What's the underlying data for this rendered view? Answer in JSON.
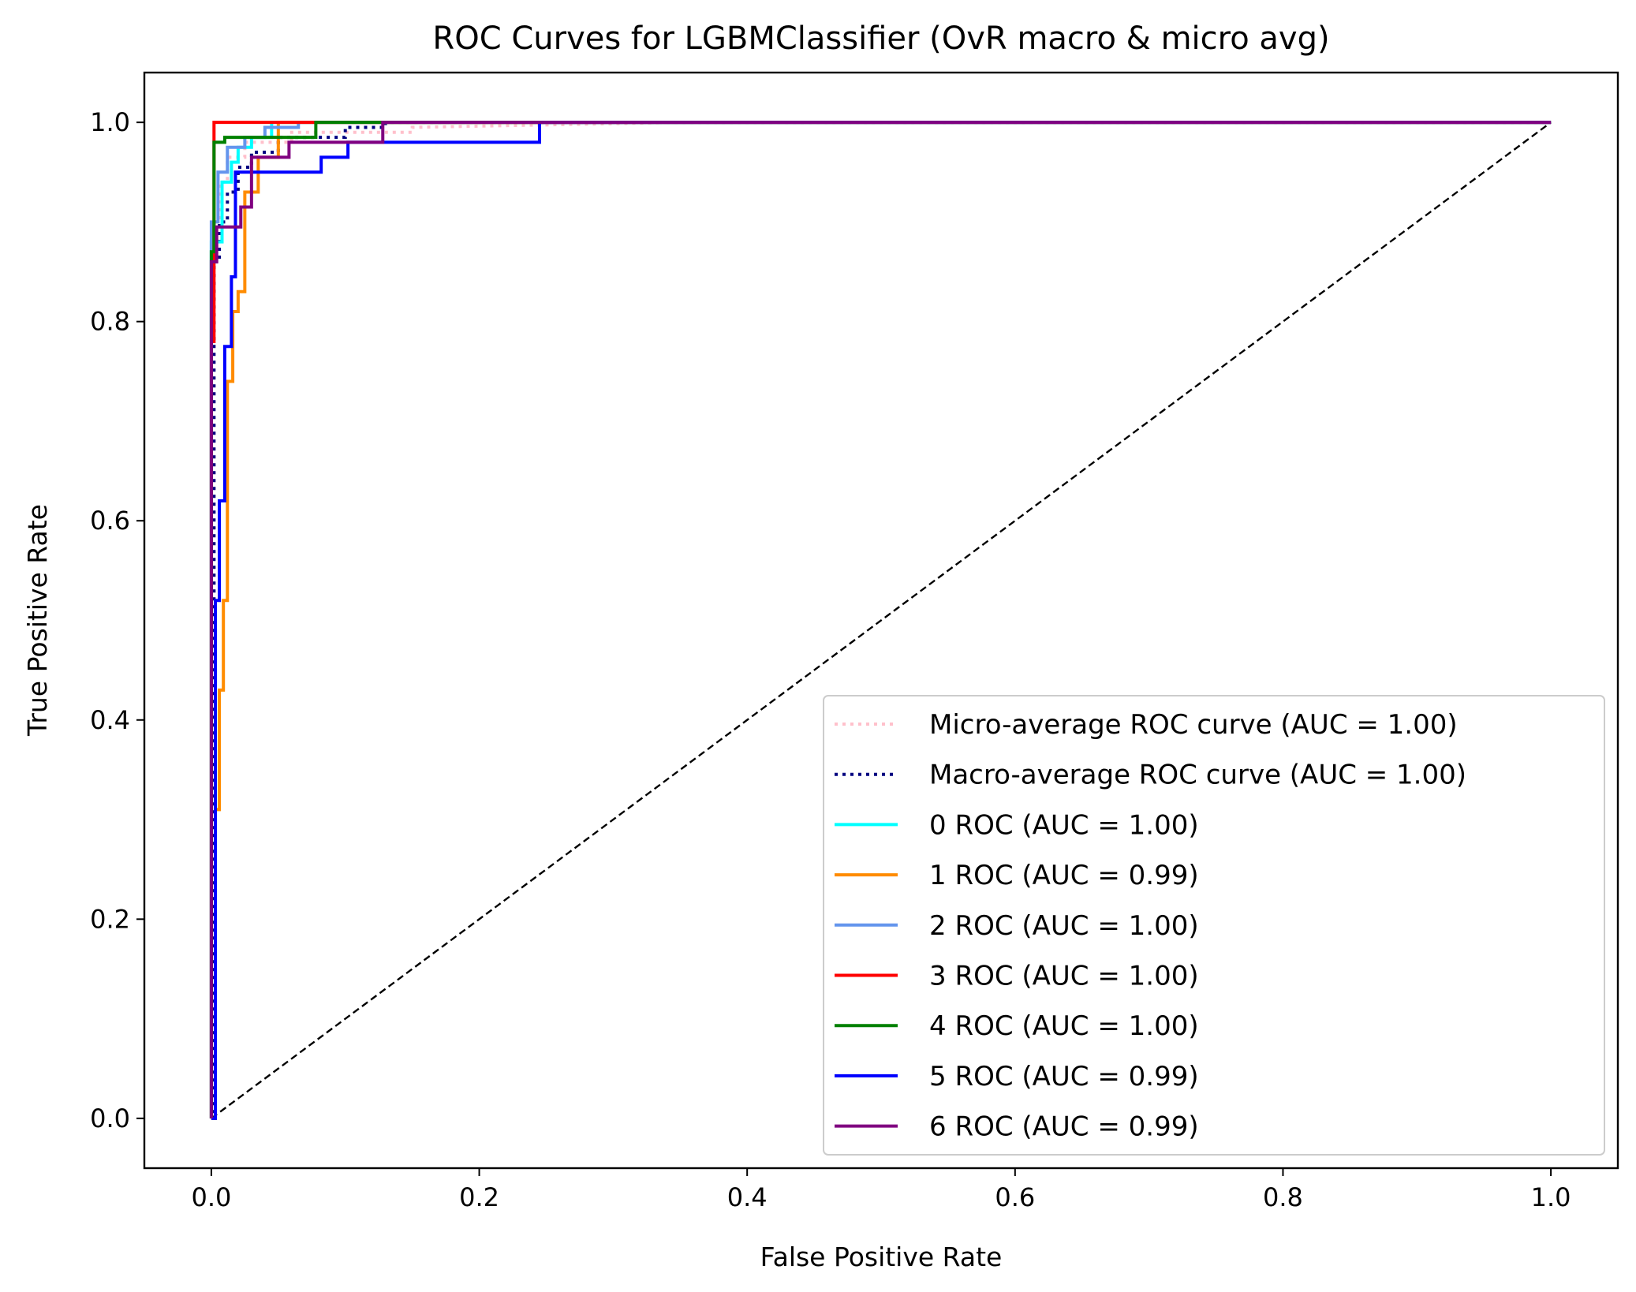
{
  "chart_data": {
    "type": "line",
    "title": "ROC Curves for LGBMClassifier (OvR macro & micro avg)",
    "xlabel": "False Positive Rate",
    "ylabel": "True Positive Rate",
    "xlim": [
      -0.05,
      1.05
    ],
    "ylim": [
      -0.05,
      1.05
    ],
    "xticks": [
      0.0,
      0.2,
      0.4,
      0.6,
      0.8,
      1.0
    ],
    "yticks": [
      0.0,
      0.2,
      0.4,
      0.6,
      0.8,
      1.0
    ],
    "xtick_labels": [
      "0.0",
      "0.2",
      "0.4",
      "0.6",
      "0.8",
      "1.0"
    ],
    "ytick_labels": [
      "0.0",
      "0.2",
      "0.4",
      "0.6",
      "0.8",
      "1.0"
    ],
    "grid": false,
    "legend_position": "lower right",
    "diagonal": {
      "x": [
        0,
        1
      ],
      "y": [
        0,
        1
      ],
      "color": "#000000",
      "style": "dashed"
    },
    "series": [
      {
        "name": "Micro-average ROC curve (AUC = 1.00)",
        "color": "#ffc0cb",
        "style": "dotted",
        "width": 4,
        "x": [
          0,
          0.002,
          0.002,
          0.006,
          0.006,
          0.012,
          0.012,
          0.025,
          0.025,
          0.06,
          0.06,
          0.15,
          0.15,
          0.35,
          1
        ],
        "y": [
          0,
          0,
          0.9,
          0.9,
          0.94,
          0.94,
          0.965,
          0.965,
          0.98,
          0.98,
          0.99,
          0.99,
          0.995,
          1.0,
          1.0
        ]
      },
      {
        "name": "Macro-average ROC curve (AUC = 1.00)",
        "color": "#000080",
        "style": "dotted",
        "width": 4,
        "x": [
          0,
          0.002,
          0.002,
          0.006,
          0.006,
          0.012,
          0.012,
          0.02,
          0.02,
          0.03,
          0.03,
          0.05,
          0.05,
          0.1,
          0.1,
          0.13,
          0.13,
          1
        ],
        "y": [
          0,
          0,
          0.86,
          0.86,
          0.9,
          0.9,
          0.93,
          0.93,
          0.955,
          0.955,
          0.97,
          0.97,
          0.985,
          0.985,
          0.995,
          0.995,
          1.0,
          1.0
        ]
      },
      {
        "name": "0 ROC (AUC = 1.00)",
        "color": "#00ffff",
        "style": "solid",
        "width": 4,
        "x": [
          0,
          0,
          0.008,
          0.008,
          0.015,
          0.015,
          0.02,
          0.02,
          0.03,
          0.03,
          0.045,
          0.045,
          1
        ],
        "y": [
          0,
          0.88,
          0.88,
          0.94,
          0.94,
          0.96,
          0.96,
          0.975,
          0.975,
          0.985,
          0.985,
          1.0,
          1.0
        ]
      },
      {
        "name": "1 ROC (AUC = 0.99)",
        "color": "#ff8c00",
        "style": "solid",
        "width": 4,
        "x": [
          0,
          0.003,
          0.003,
          0.006,
          0.006,
          0.009,
          0.009,
          0.012,
          0.012,
          0.016,
          0.016,
          0.02,
          0.02,
          0.025,
          0.025,
          0.035,
          0.035,
          0.05,
          0.05,
          1
        ],
        "y": [
          0,
          0,
          0.31,
          0.31,
          0.43,
          0.43,
          0.52,
          0.52,
          0.74,
          0.74,
          0.81,
          0.81,
          0.83,
          0.83,
          0.93,
          0.93,
          0.965,
          0.965,
          1.0,
          1.0
        ]
      },
      {
        "name": "2 ROC (AUC = 1.00)",
        "color": "#6495ed",
        "style": "solid",
        "width": 4,
        "x": [
          0,
          0,
          0.005,
          0.005,
          0.012,
          0.012,
          0.025,
          0.025,
          0.04,
          0.04,
          0.065,
          0.065,
          1
        ],
        "y": [
          0,
          0.9,
          0.9,
          0.95,
          0.95,
          0.975,
          0.975,
          0.985,
          0.985,
          0.995,
          0.995,
          1.0,
          1.0
        ]
      },
      {
        "name": "3 ROC (AUC = 1.00)",
        "color": "#ff0000",
        "style": "solid",
        "width": 4,
        "x": [
          0,
          0,
          0.002,
          0.002,
          1
        ],
        "y": [
          0,
          0.78,
          0.78,
          1.0,
          1.0
        ]
      },
      {
        "name": "4 ROC (AUC = 1.00)",
        "color": "#008000",
        "style": "solid",
        "width": 4,
        "x": [
          0,
          0,
          0.002,
          0.002,
          0.01,
          0.01,
          0.078,
          0.078,
          1
        ],
        "y": [
          0,
          0.87,
          0.87,
          0.98,
          0.98,
          0.985,
          0.985,
          1.0,
          1.0
        ]
      },
      {
        "name": "5 ROC (AUC = 0.99)",
        "color": "#0000ff",
        "style": "solid",
        "width": 4,
        "x": [
          0,
          0.003,
          0.003,
          0.006,
          0.006,
          0.01,
          0.01,
          0.015,
          0.015,
          0.018,
          0.018,
          0.082,
          0.082,
          0.102,
          0.102,
          0.245,
          0.245,
          1
        ],
        "y": [
          0,
          0,
          0.52,
          0.52,
          0.62,
          0.62,
          0.775,
          0.775,
          0.845,
          0.845,
          0.95,
          0.95,
          0.965,
          0.965,
          0.98,
          0.98,
          1.0,
          1.0
        ]
      },
      {
        "name": "6 ROC (AUC = 0.99)",
        "color": "#800080",
        "style": "solid",
        "width": 4,
        "x": [
          0,
          0,
          0.004,
          0.004,
          0.022,
          0.022,
          0.03,
          0.03,
          0.058,
          0.058,
          0.128,
          0.128,
          1
        ],
        "y": [
          0,
          0.86,
          0.86,
          0.895,
          0.895,
          0.915,
          0.915,
          0.965,
          0.965,
          0.98,
          0.98,
          1.0,
          1.0
        ]
      }
    ]
  }
}
